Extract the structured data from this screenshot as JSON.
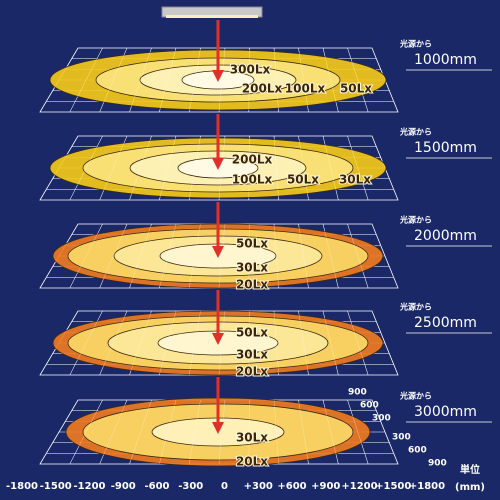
{
  "levels": [
    {
      "source_label": "光源から",
      "distance": "1000mm",
      "lux_labels": [
        "300Lx",
        "200Lx",
        "100Lx",
        "50Lx"
      ]
    },
    {
      "source_label": "光源から",
      "distance": "1500mm",
      "lux_labels": [
        "200Lx",
        "100Lx",
        "50Lx",
        "30Lx"
      ]
    },
    {
      "source_label": "光源から",
      "distance": "2000mm",
      "lux_labels": [
        "50Lx",
        "30Lx",
        "20Lx"
      ]
    },
    {
      "source_label": "光源から",
      "distance": "2500mm",
      "lux_labels": [
        "50Lx",
        "30Lx",
        "20Lx"
      ]
    },
    {
      "source_label": "光源から",
      "distance": "3000mm",
      "lux_labels": [
        "30Lx",
        "20Lx"
      ]
    }
  ],
  "depth_labels_back": [
    "900",
    "600",
    "300"
  ],
  "depth_labels_front": [
    "300",
    "600",
    "900"
  ],
  "x_axis": {
    "labels": [
      "-1800",
      "-1500",
      "-1200",
      "-900",
      "-600",
      "-300",
      "0",
      "+300",
      "+600",
      "+900",
      "+1200",
      "+1500",
      "+1800"
    ],
    "unit_label": "単位",
    "unit": "(mm)"
  }
}
